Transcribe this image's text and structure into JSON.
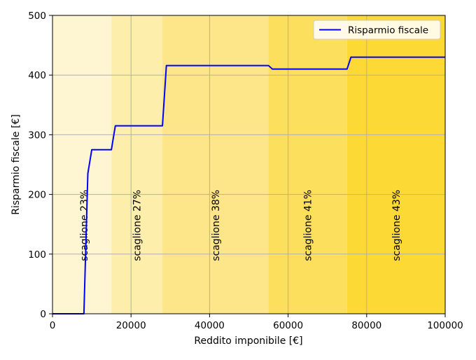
{
  "chart_data": {
    "type": "line",
    "title": "",
    "xlabel": "Reddito imponibile [€]",
    "ylabel": "Risparmio fiscale [€]",
    "xlim": [
      0,
      100000
    ],
    "ylim": [
      0,
      500
    ],
    "x_ticks": [
      0,
      20000,
      40000,
      60000,
      80000,
      100000
    ],
    "y_ticks": [
      0,
      100,
      200,
      300,
      400,
      500
    ],
    "x_tick_labels": [
      "0",
      "20000",
      "40000",
      "60000",
      "80000",
      "100000"
    ],
    "y_tick_labels": [
      "0",
      "100",
      "200",
      "300",
      "400",
      "500"
    ],
    "grid": true,
    "legend_position": "top-right",
    "series": [
      {
        "name": "Risparmio fiscale",
        "color": "#0000ff",
        "points": [
          [
            0,
            0
          ],
          [
            8000,
            0
          ],
          [
            9000,
            235
          ],
          [
            10000,
            275
          ],
          [
            15000,
            275
          ],
          [
            16000,
            315
          ],
          [
            28000,
            315
          ],
          [
            29000,
            416
          ],
          [
            55000,
            416
          ],
          [
            56000,
            410
          ],
          [
            75000,
            410
          ],
          [
            76000,
            430
          ],
          [
            100000,
            430
          ]
        ]
      }
    ],
    "bands": [
      {
        "from": 0,
        "to": 15000,
        "label": "scaglione 23%",
        "color": "#fef6d2",
        "label_x": 8000
      },
      {
        "from": 15000,
        "to": 28000,
        "label": "scaglione 27%",
        "color": "#fdeeab",
        "label_x": 21500
      },
      {
        "from": 28000,
        "to": 55000,
        "label": "scaglione 38%",
        "color": "#fde68a",
        "label_x": 41500
      },
      {
        "from": 55000,
        "to": 75000,
        "label": "scaglione 41%",
        "color": "#fddf5e",
        "label_x": 65000
      },
      {
        "from": 75000,
        "to": 100000,
        "label": "scaglione 43%",
        "color": "#fdd935",
        "label_x": 87500
      }
    ],
    "band_label_y": 100
  }
}
